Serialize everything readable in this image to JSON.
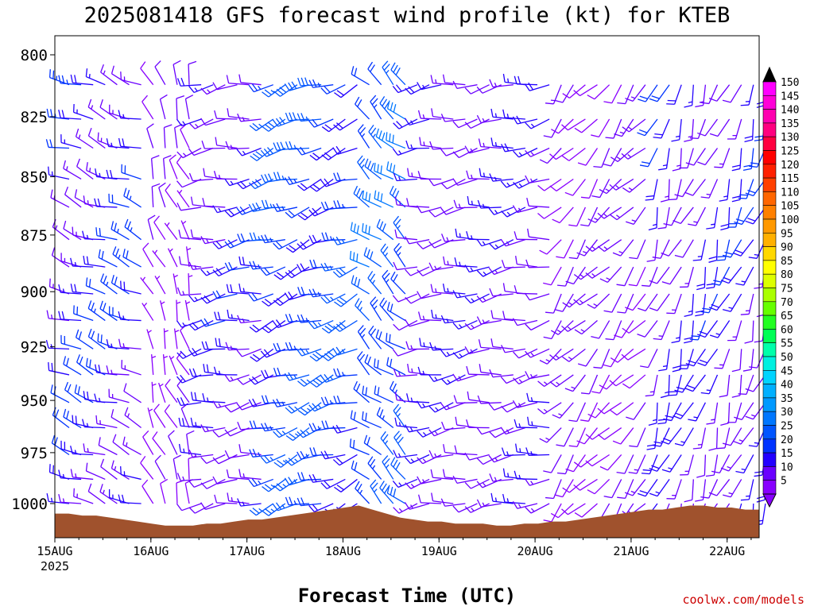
{
  "chart_data": {
    "type": "wind-barb-time-height",
    "title": "2025081418 GFS forecast wind profile (kt) for KTEB",
    "xlabel": "Forecast Time (UTC)",
    "ylabel": "",
    "credit": "coolwx.com/models",
    "x_ticks": [
      {
        "label": "15AUG",
        "sub": "2025",
        "hours": 6
      },
      {
        "label": "16AUG",
        "sub": "",
        "hours": 30
      },
      {
        "label": "17AUG",
        "sub": "",
        "hours": 54
      },
      {
        "label": "18AUG",
        "sub": "",
        "hours": 78
      },
      {
        "label": "19AUG",
        "sub": "",
        "hours": 102
      },
      {
        "label": "20AUG",
        "sub": "",
        "hours": 126
      },
      {
        "label": "21AUG",
        "sub": "",
        "hours": 150
      },
      {
        "label": "22AUG",
        "sub": "",
        "hours": 174
      }
    ],
    "x_range_hours": [
      6,
      182
    ],
    "y_ticks": [
      800,
      825,
      850,
      875,
      900,
      925,
      950,
      975,
      1000
    ],
    "y_range_hpa": [
      792,
      1015
    ],
    "y_scale": "log-pressure",
    "time_step_hours": 3,
    "levels_hpa": [
      790,
      812,
      826,
      838,
      851,
      863,
      877,
      889,
      901,
      913,
      926,
      938,
      951,
      963,
      976,
      988,
      1000,
      1011
    ],
    "colorbar": {
      "values": [
        5,
        10,
        15,
        20,
        25,
        30,
        35,
        40,
        45,
        50,
        55,
        60,
        65,
        70,
        75,
        80,
        85,
        90,
        95,
        100,
        105,
        110,
        115,
        120,
        125,
        130,
        135,
        140,
        145,
        150
      ],
      "colors": [
        "#8800ff",
        "#6a00ff",
        "#2200ff",
        "#0033ff",
        "#0055ff",
        "#0077ff",
        "#0099ff",
        "#00b0ff",
        "#00d4ff",
        "#00f0e0",
        "#00ffaa",
        "#00ff55",
        "#22ff22",
        "#66ff00",
        "#aaff00",
        "#ddff00",
        "#ffff00",
        "#ffd800",
        "#ffb000",
        "#ff9900",
        "#ff8000",
        "#ff6600",
        "#ff4000",
        "#ff2000",
        "#ff0000",
        "#ff0040",
        "#ff0080",
        "#ff00b0",
        "#ff00d8",
        "#ff00ff"
      ]
    },
    "terrain_surface_hpa_approx": [
      1005,
      1005,
      1006,
      1006,
      1007,
      1008,
      1009,
      1010,
      1011,
      1011,
      1011,
      1010,
      1010,
      1009,
      1008,
      1008,
      1007,
      1006,
      1005,
      1004,
      1003,
      1002,
      1001,
      1003,
      1005,
      1007,
      1008,
      1009,
      1009,
      1010,
      1010,
      1010,
      1011,
      1011,
      1010,
      1010,
      1009,
      1009,
      1008,
      1007,
      1006,
      1005,
      1004,
      1003,
      1003,
      1002,
      1001,
      1001,
      1002,
      1002,
      1003,
      1003
    ],
    "terrain_color": "#a0522d",
    "wind_regimes": [
      {
        "hours": [
          6,
          24
        ],
        "dir_deg": 290,
        "speed_kt": [
          12,
          25
        ]
      },
      {
        "hours": [
          24,
          36
        ],
        "dir_deg": 340,
        "speed_kt": [
          5,
          12
        ]
      },
      {
        "hours": [
          36,
          54
        ],
        "dir_deg": 260,
        "speed_kt": [
          10,
          22
        ]
      },
      {
        "hours": [
          54,
          78
        ],
        "dir_deg": 250,
        "speed_kt": [
          18,
          30
        ]
      },
      {
        "hours": [
          78,
          90
        ],
        "dir_deg": 310,
        "speed_kt": [
          20,
          32
        ]
      },
      {
        "hours": [
          90,
          126
        ],
        "dir_deg": 260,
        "speed_kt": [
          10,
          18
        ]
      },
      {
        "hours": [
          126,
          150
        ],
        "dir_deg": 220,
        "speed_kt": [
          8,
          15
        ]
      },
      {
        "hours": [
          150,
          182
        ],
        "dir_deg": 200,
        "speed_kt": [
          10,
          22
        ]
      }
    ]
  }
}
